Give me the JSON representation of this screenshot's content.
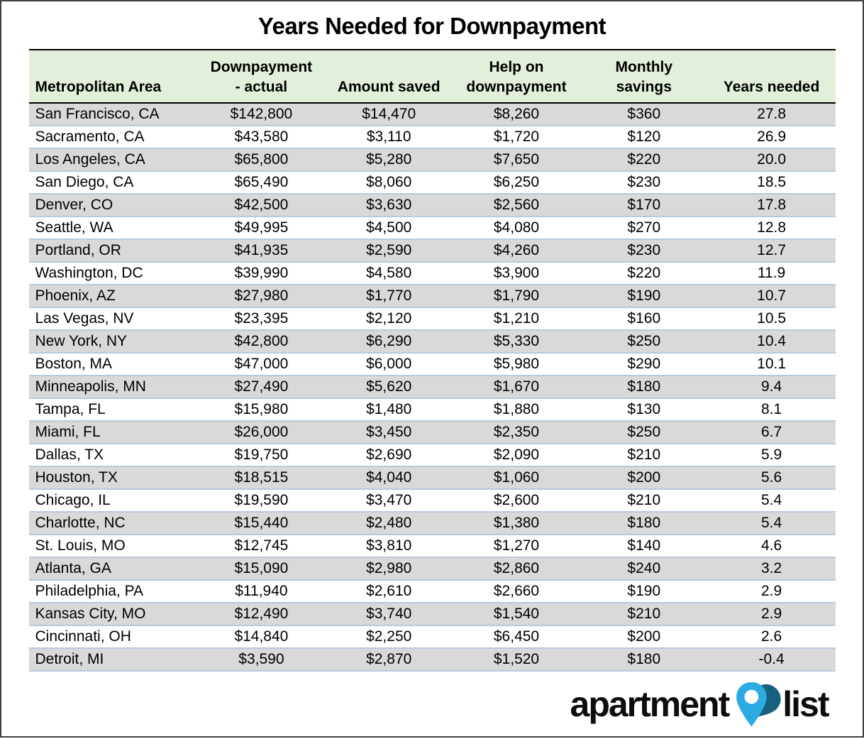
{
  "title": "Years Needed for Downpayment",
  "table": {
    "columns": [
      {
        "id": "metro",
        "label": "Metropolitan Area"
      },
      {
        "id": "downpayment-actual",
        "label": "Downpayment\n- actual"
      },
      {
        "id": "amount-saved",
        "label": "Amount saved"
      },
      {
        "id": "help-on-downpayment",
        "label": "Help on\ndownpayment"
      },
      {
        "id": "monthly-savings",
        "label": "Monthly\nsavings"
      },
      {
        "id": "years-needed",
        "label": "Years needed"
      }
    ]
  },
  "chart_data": {
    "type": "table",
    "title": "Years Needed for Downpayment",
    "columns": [
      "Metropolitan Area",
      "Downpayment - actual",
      "Amount saved",
      "Help on downpayment",
      "Monthly savings",
      "Years needed"
    ],
    "rows": [
      [
        "San Francisco, CA",
        "$142,800",
        "$14,470",
        "$8,260",
        "$360",
        "27.8"
      ],
      [
        "Sacramento, CA",
        "$43,580",
        "$3,110",
        "$1,720",
        "$120",
        "26.9"
      ],
      [
        "Los Angeles, CA",
        "$65,800",
        "$5,280",
        "$7,650",
        "$220",
        "20.0"
      ],
      [
        "San Diego, CA",
        "$65,490",
        "$8,060",
        "$6,250",
        "$230",
        "18.5"
      ],
      [
        "Denver, CO",
        "$42,500",
        "$3,630",
        "$2,560",
        "$170",
        "17.8"
      ],
      [
        "Seattle, WA",
        "$49,995",
        "$4,500",
        "$4,080",
        "$270",
        "12.8"
      ],
      [
        "Portland, OR",
        "$41,935",
        "$2,590",
        "$4,260",
        "$230",
        "12.7"
      ],
      [
        "Washington, DC",
        "$39,990",
        "$4,580",
        "$3,900",
        "$220",
        "11.9"
      ],
      [
        "Phoenix, AZ",
        "$27,980",
        "$1,770",
        "$1,790",
        "$190",
        "10.7"
      ],
      [
        "Las Vegas, NV",
        "$23,395",
        "$2,120",
        "$1,210",
        "$160",
        "10.5"
      ],
      [
        "New York, NY",
        "$42,800",
        "$6,290",
        "$5,330",
        "$250",
        "10.4"
      ],
      [
        "Boston, MA",
        "$47,000",
        "$6,000",
        "$5,980",
        "$290",
        "10.1"
      ],
      [
        "Minneapolis, MN",
        "$27,490",
        "$5,620",
        "$1,670",
        "$180",
        "9.4"
      ],
      [
        "Tampa, FL",
        "$15,980",
        "$1,480",
        "$1,880",
        "$130",
        "8.1"
      ],
      [
        "Miami, FL",
        "$26,000",
        "$3,450",
        "$2,350",
        "$250",
        "6.7"
      ],
      [
        "Dallas, TX",
        "$19,750",
        "$2,690",
        "$2,090",
        "$210",
        "5.9"
      ],
      [
        "Houston, TX",
        "$18,515",
        "$4,040",
        "$1,060",
        "$200",
        "5.6"
      ],
      [
        "Chicago, IL",
        "$19,590",
        "$3,470",
        "$2,600",
        "$210",
        "5.4"
      ],
      [
        "Charlotte, NC",
        "$15,440",
        "$2,480",
        "$1,380",
        "$180",
        "5.4"
      ],
      [
        "St. Louis, MO",
        "$12,745",
        "$3,810",
        "$1,270",
        "$140",
        "4.6"
      ],
      [
        "Atlanta, GA",
        "$15,090",
        "$2,980",
        "$2,860",
        "$240",
        "3.2"
      ],
      [
        "Philadelphia, PA",
        "$11,940",
        "$2,610",
        "$2,660",
        "$190",
        "2.9"
      ],
      [
        "Kansas City, MO",
        "$12,490",
        "$3,740",
        "$1,540",
        "$210",
        "2.9"
      ],
      [
        "Cincinnati, OH",
        "$14,840",
        "$2,250",
        "$6,450",
        "$200",
        "2.6"
      ],
      [
        "Detroit, MI",
        "$3,590",
        "$2,870",
        "$1,520",
        "$180",
        "-0.4"
      ]
    ]
  },
  "logo": {
    "word1": "apartment",
    "word2": "list",
    "icon": "location-pin-icon"
  },
  "colors": {
    "header_bg": "#e2efdb",
    "row_stripe": "#d9d9d9",
    "row_divider": "#b7c9de",
    "header_border": "#000000",
    "pin_light_blue": "#2babe2",
    "pin_dark_blue": "#19607f"
  }
}
